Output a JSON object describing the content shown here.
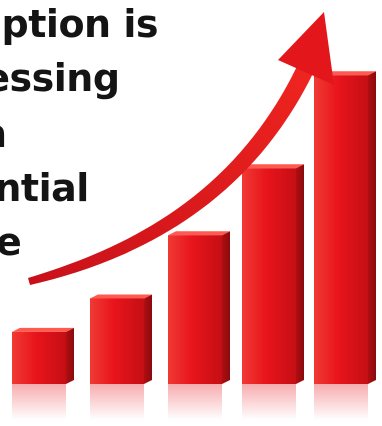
{
  "headline": {
    "lines": [
      "uption is",
      "ressing",
      "n",
      "mential",
      "e"
    ]
  },
  "chart_data": {
    "type": "bar",
    "title": "",
    "xlabel": "",
    "ylabel": "",
    "categories": [
      "",
      "",
      "",
      "",
      ""
    ],
    "values": [
      14,
      23,
      40,
      58,
      83
    ],
    "ylim": [
      0,
      100
    ],
    "trend_arrow": "rising"
  },
  "colors": {
    "bar": "#e8141b",
    "bar_dark": "#a40d0f",
    "bar_light": "#ff5a4f",
    "arrow": "#e3161c",
    "text": "#141414",
    "background": "#ffffff"
  }
}
